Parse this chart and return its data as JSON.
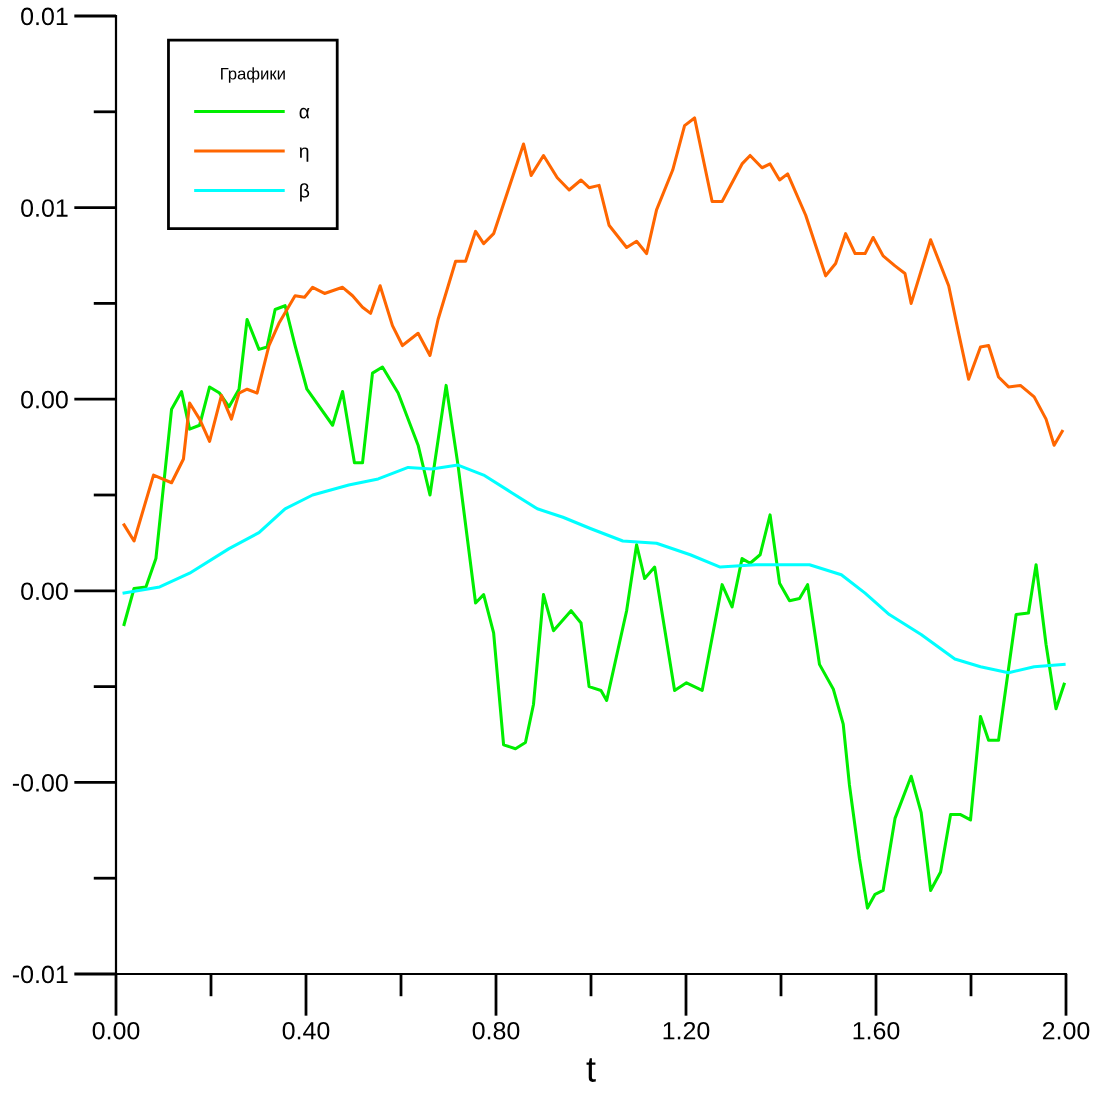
{
  "chart_data": {
    "type": "line",
    "xlabel": "t",
    "legend_title": "Графики",
    "legend": "top left",
    "grid": false,
    "xlim": [
      0,
      2
    ],
    "ylim": [
      -0.005,
      0.0075
    ],
    "xticks": [
      {
        "value": 0,
        "label": "0.00"
      },
      {
        "value": 0.2,
        "label": null
      },
      {
        "value": 0.4,
        "label": "0.40"
      },
      {
        "value": 0.6,
        "label": null
      },
      {
        "value": 0.8,
        "label": "0.80"
      },
      {
        "value": 1.0,
        "label": null
      },
      {
        "value": 1.2,
        "label": "1.20"
      },
      {
        "value": 1.4,
        "label": null
      },
      {
        "value": 1.6,
        "label": "1.60"
      },
      {
        "value": 1.8,
        "label": null
      },
      {
        "value": 2.0,
        "label": "2.00"
      }
    ],
    "yticks": [
      {
        "value": -0.005,
        "label": "-0.01"
      },
      {
        "value": -0.00375,
        "label": null
      },
      {
        "value": -0.0025,
        "label": "-0.00"
      },
      {
        "value": -0.00125,
        "label": null
      },
      {
        "value": 0,
        "label": "0.00"
      },
      {
        "value": 0.00125,
        "label": null
      },
      {
        "value": 0.0025,
        "label": "0.00"
      },
      {
        "value": 0.00375,
        "label": null
      },
      {
        "value": 0.005,
        "label": "0.01"
      },
      {
        "value": 0.00625,
        "label": null
      },
      {
        "value": 0.0075,
        "label": "0.01"
      }
    ],
    "series": [
      {
        "name": "α",
        "color": "#00ee00",
        "x": [
          0.017,
          0.038,
          0.063,
          0.084,
          0.117,
          0.138,
          0.155,
          0.176,
          0.197,
          0.218,
          0.238,
          0.259,
          0.276,
          0.301,
          0.318,
          0.335,
          0.356,
          0.377,
          0.402,
          0.456,
          0.477,
          0.502,
          0.519,
          0.54,
          0.561,
          0.594,
          0.636,
          0.661,
          0.695,
          0.72,
          0.757,
          0.774,
          0.795,
          0.816,
          0.841,
          0.862,
          0.879,
          0.9,
          0.921,
          0.958,
          0.979,
          0.996,
          1.021,
          1.033,
          1.075,
          1.096,
          1.113,
          1.134,
          1.176,
          1.201,
          1.234,
          1.276,
          1.297,
          1.318,
          1.335,
          1.356,
          1.377,
          1.397,
          1.418,
          1.439,
          1.456,
          1.481,
          1.51,
          1.531,
          1.544,
          1.565,
          1.582,
          1.598,
          1.615,
          1.64,
          1.674,
          1.695,
          1.715,
          1.736,
          1.757,
          1.778,
          1.799,
          1.82,
          1.837,
          1.858,
          1.895,
          1.921,
          1.937,
          1.958,
          1.979,
          1.996
        ],
        "values": [
          -0.00044,
          3e-05,
          5e-05,
          0.00042,
          0.00237,
          0.0026,
          0.00211,
          0.00216,
          0.00266,
          0.00258,
          0.0024,
          0.00263,
          0.00354,
          0.00315,
          0.00318,
          0.00367,
          0.00372,
          0.0032,
          0.00263,
          0.00216,
          0.0026,
          0.00167,
          0.00167,
          0.00284,
          0.00292,
          0.00258,
          0.0019,
          0.00125,
          0.00268,
          0.00164,
          -0.00016,
          -5e-05,
          -0.00055,
          -0.00201,
          -0.00206,
          -0.00198,
          -0.00148,
          -5e-05,
          -0.00052,
          -0.00026,
          -0.00042,
          -0.00125,
          -0.0013,
          -0.00143,
          -0.00026,
          0.0006,
          0.00016,
          0.00031,
          -0.0013,
          -0.0012,
          -0.0013,
          8e-05,
          -0.00021,
          0.00042,
          0.00036,
          0.00047,
          0.00099,
          0.0001,
          -0.00013,
          -0.0001,
          8e-05,
          -0.00096,
          -0.00128,
          -0.00174,
          -0.00253,
          -0.00349,
          -0.00414,
          -0.00396,
          -0.00391,
          -0.00297,
          -0.00242,
          -0.00289,
          -0.00391,
          -0.00367,
          -0.00292,
          -0.00292,
          -0.00299,
          -0.00164,
          -0.00195,
          -0.00195,
          -0.00031,
          -0.00029,
          0.00034,
          -0.0007,
          -0.00154,
          -0.00122
        ]
      },
      {
        "name": "η",
        "color": "#ff6600",
        "x": [
          0.017,
          0.038,
          0.079,
          0.117,
          0.142,
          0.155,
          0.176,
          0.197,
          0.222,
          0.243,
          0.259,
          0.276,
          0.297,
          0.322,
          0.343,
          0.377,
          0.397,
          0.414,
          0.439,
          0.477,
          0.498,
          0.519,
          0.536,
          0.556,
          0.582,
          0.603,
          0.636,
          0.661,
          0.678,
          0.715,
          0.736,
          0.757,
          0.774,
          0.795,
          0.858,
          0.874,
          0.9,
          0.929,
          0.954,
          0.979,
          0.996,
          1.017,
          1.038,
          1.075,
          1.096,
          1.117,
          1.138,
          1.172,
          1.197,
          1.218,
          1.255,
          1.276,
          1.318,
          1.335,
          1.36,
          1.377,
          1.397,
          1.414,
          1.452,
          1.494,
          1.515,
          1.536,
          1.556,
          1.577,
          1.594,
          1.615,
          1.64,
          1.661,
          1.674,
          1.715,
          1.753,
          1.774,
          1.795,
          1.82,
          1.837,
          1.858,
          1.879,
          1.904,
          1.933,
          1.958,
          1.975,
          1.992
        ],
        "values": [
          0.00086,
          0.00065,
          0.00151,
          0.00141,
          0.00172,
          0.00245,
          0.00224,
          0.00195,
          0.00255,
          0.00224,
          0.00258,
          0.00263,
          0.00258,
          0.0032,
          0.00349,
          0.00385,
          0.00383,
          0.00396,
          0.00388,
          0.00396,
          0.00385,
          0.0037,
          0.00362,
          0.00398,
          0.00346,
          0.0032,
          0.00336,
          0.00307,
          0.00354,
          0.0043,
          0.0043,
          0.00469,
          0.00453,
          0.00466,
          0.00583,
          0.00542,
          0.00568,
          0.00539,
          0.00523,
          0.00536,
          0.00526,
          0.00529,
          0.00477,
          0.00448,
          0.00456,
          0.0044,
          0.00497,
          0.00549,
          0.00607,
          0.00617,
          0.00508,
          0.00508,
          0.00557,
          0.00568,
          0.00552,
          0.00557,
          0.00536,
          0.00544,
          0.0049,
          0.00411,
          0.00427,
          0.00466,
          0.0044,
          0.0044,
          0.00461,
          0.00437,
          0.00424,
          0.00414,
          0.00375,
          0.00458,
          0.00398,
          0.00336,
          0.00276,
          0.00318,
          0.0032,
          0.00279,
          0.00266,
          0.00268,
          0.00253,
          0.00224,
          0.0019,
          0.00208
        ]
      },
      {
        "name": "β",
        "color": "#00ffff",
        "x": [
          0.017,
          0.092,
          0.155,
          0.238,
          0.301,
          0.356,
          0.414,
          0.49,
          0.552,
          0.615,
          0.665,
          0.72,
          0.774,
          0.833,
          0.887,
          0.941,
          1.0,
          1.067,
          1.138,
          1.209,
          1.272,
          1.347,
          1.46,
          1.527,
          1.577,
          1.628,
          1.695,
          1.766,
          1.82,
          1.879,
          1.933,
          1.996
        ],
        "values": [
          -3e-05,
          5e-05,
          0.00023,
          0.00055,
          0.00076,
          0.00107,
          0.00125,
          0.00138,
          0.00146,
          0.00161,
          0.00159,
          0.00164,
          0.00151,
          0.00128,
          0.00107,
          0.00096,
          0.00081,
          0.00065,
          0.00062,
          0.00047,
          0.00031,
          0.00034,
          0.00034,
          0.00021,
          -3e-05,
          -0.00031,
          -0.00057,
          -0.00089,
          -0.00099,
          -0.00107,
          -0.00099,
          -0.00096
        ]
      }
    ]
  }
}
